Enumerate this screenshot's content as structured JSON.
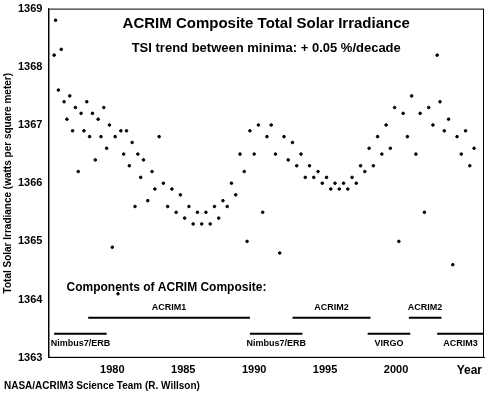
{
  "chart_data": {
    "type": "scatter",
    "title": "ACRIM Composite Total Solar Irradiance",
    "subtitle": "TSI trend between minima: + 0.05 %/decade",
    "x_label": "Year",
    "y_label": "Total Solar Irradiance (watts per square meter)",
    "footer": "NASA/ACRIM3 Science Team (R. Willson)",
    "components_title": "Components of ACRIM Composite:",
    "components": [
      {
        "name": "Nimbus7/ERB",
        "start": 1975.9,
        "end": 1979.6
      },
      {
        "name": "ACRIM1",
        "start": 1978.3,
        "end": 1989.7
      },
      {
        "name": "Nimbus7/ERB",
        "start": 1989.7,
        "end": 1993.4
      },
      {
        "name": "ACRIM2",
        "start": 1992.7,
        "end": 1998.2
      },
      {
        "name": "VIRGO",
        "start": 1998.0,
        "end": 2001.0
      },
      {
        "name": "ACRIM2",
        "start": 2000.9,
        "end": 2003.2
      },
      {
        "name": "ACRIM3",
        "start": 2002.9,
        "end": 2006.2
      }
    ],
    "x": [
      1975.9,
      1976.0,
      1976.2,
      1976.4,
      1976.6,
      1976.8,
      1977.0,
      1977.2,
      1977.4,
      1977.6,
      1977.8,
      1978.0,
      1978.2,
      1978.4,
      1978.6,
      1978.8,
      1979.0,
      1979.2,
      1979.4,
      1979.6,
      1979.8,
      1980.0,
      1980.2,
      1980.4,
      1980.6,
      1980.8,
      1981.0,
      1981.2,
      1981.4,
      1981.6,
      1981.8,
      1982.0,
      1982.2,
      1982.5,
      1982.8,
      1983.0,
      1983.3,
      1983.6,
      1983.9,
      1984.2,
      1984.5,
      1984.8,
      1985.1,
      1985.4,
      1985.7,
      1986.0,
      1986.3,
      1986.6,
      1986.9,
      1987.2,
      1987.5,
      1987.8,
      1988.1,
      1988.4,
      1988.7,
      1989.0,
      1989.3,
      1989.5,
      1989.7,
      1990.0,
      1990.3,
      1990.6,
      1990.9,
      1991.2,
      1991.5,
      1991.8,
      1992.1,
      1992.4,
      1992.7,
      1993.0,
      1993.3,
      1993.6,
      1993.9,
      1994.2,
      1994.5,
      1994.8,
      1995.1,
      1995.4,
      1995.7,
      1996.0,
      1996.3,
      1996.6,
      1996.9,
      1997.2,
      1997.5,
      1997.8,
      1998.1,
      1998.4,
      1998.7,
      1999.0,
      1999.3,
      1999.6,
      1999.9,
      2000.2,
      2000.5,
      2000.8,
      2001.1,
      2001.4,
      2001.7,
      2002.0,
      2002.3,
      2002.6,
      2002.9,
      2003.1,
      2003.4,
      2003.7,
      2004.0,
      2004.3,
      2004.6,
      2004.9,
      2005.2,
      2005.5
    ],
    "values": [
      1368.2,
      1368.8,
      1367.6,
      1368.3,
      1367.4,
      1367.1,
      1367.5,
      1366.9,
      1367.3,
      1366.2,
      1367.2,
      1366.9,
      1367.4,
      1366.8,
      1367.2,
      1366.4,
      1367.1,
      1366.8,
      1367.3,
      1366.6,
      1367.0,
      1364.9,
      1366.8,
      1364.1,
      1366.9,
      1366.5,
      1366.9,
      1366.3,
      1366.7,
      1365.6,
      1366.5,
      1366.1,
      1366.4,
      1365.7,
      1366.2,
      1365.9,
      1366.8,
      1366.0,
      1365.6,
      1365.9,
      1365.5,
      1365.8,
      1365.4,
      1365.6,
      1365.3,
      1365.5,
      1365.3,
      1365.5,
      1365.3,
      1365.6,
      1365.4,
      1365.7,
      1365.6,
      1366.0,
      1365.8,
      1366.5,
      1366.2,
      1365.0,
      1366.9,
      1366.5,
      1367.0,
      1365.5,
      1366.8,
      1367.0,
      1366.5,
      1364.8,
      1366.8,
      1366.4,
      1366.7,
      1366.3,
      1366.5,
      1366.1,
      1366.3,
      1366.1,
      1366.2,
      1366.0,
      1366.1,
      1365.9,
      1366.0,
      1365.9,
      1366.0,
      1365.9,
      1366.1,
      1366.0,
      1366.3,
      1366.2,
      1366.6,
      1366.3,
      1366.8,
      1366.5,
      1367.0,
      1366.6,
      1367.3,
      1365.0,
      1367.2,
      1366.8,
      1367.5,
      1366.5,
      1367.2,
      1365.5,
      1367.3,
      1367.0,
      1368.2,
      1367.4,
      1366.9,
      1367.1,
      1364.6,
      1366.8,
      1366.5,
      1366.9,
      1366.3,
      1366.6
    ],
    "color": "#000000",
    "marker": "dot",
    "grid": false,
    "xlim": [
      1975.5,
      2006.2
    ],
    "xticks": [
      1980,
      1985,
      1990,
      1995,
      2000
    ],
    "ylim": [
      1363,
      1369
    ],
    "yticks": [
      1363,
      1364,
      1365,
      1366,
      1367,
      1368,
      1369
    ]
  }
}
